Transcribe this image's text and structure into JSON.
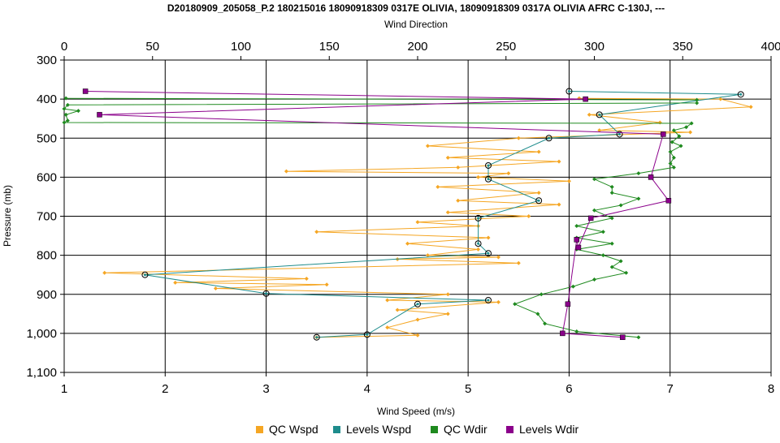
{
  "chart_data": {
    "type": "line",
    "title": "D20180909_205058_P.2 180215016 18090918309 0317E OLIVIA, 18090918309 0317A OLIVIA AFRC C-130J, ---",
    "xlabel": "Wind Speed (m/s)",
    "x2label": "Wind Direction",
    "ylabel": "Pressure (mb)",
    "xlim": [
      1,
      8
    ],
    "x2lim": [
      0,
      400
    ],
    "ylim": [
      300,
      1100
    ],
    "y_inverted": true,
    "grid": true,
    "legend_position": "bottom",
    "x_ticks": [
      "1",
      "2",
      "3",
      "4",
      "5",
      "6",
      "7",
      "8"
    ],
    "x2_ticks": [
      "0",
      "50",
      "100",
      "150",
      "200",
      "250",
      "300",
      "350",
      "400"
    ],
    "y_ticks": [
      "300",
      "400",
      "500",
      "600",
      "700",
      "800",
      "900",
      "1,000",
      "1,100"
    ],
    "series": [
      {
        "name": "QC Wspd",
        "axis": "bottom",
        "color": "#f5a623",
        "marker": "diamond",
        "points": [
          [
            6.1,
            398
          ],
          [
            7.5,
            400
          ],
          [
            7.8,
            420
          ],
          [
            6.2,
            440
          ],
          [
            6.9,
            460
          ],
          [
            6.3,
            480
          ],
          [
            7.2,
            485
          ],
          [
            5.5,
            500
          ],
          [
            4.6,
            520
          ],
          [
            5.7,
            535
          ],
          [
            4.8,
            550
          ],
          [
            5.9,
            560
          ],
          [
            4.9,
            575
          ],
          [
            3.2,
            585
          ],
          [
            5.4,
            590
          ],
          [
            5.1,
            600
          ],
          [
            6.0,
            610
          ],
          [
            4.7,
            625
          ],
          [
            5.7,
            640
          ],
          [
            4.9,
            660
          ],
          [
            5.9,
            670
          ],
          [
            4.8,
            690
          ],
          [
            5.6,
            700
          ],
          [
            4.5,
            715
          ],
          [
            5.1,
            725
          ],
          [
            3.5,
            740
          ],
          [
            5.2,
            755
          ],
          [
            4.4,
            770
          ],
          [
            5.1,
            785
          ],
          [
            4.6,
            800
          ],
          [
            5.3,
            805
          ],
          [
            4.3,
            810
          ],
          [
            5.5,
            820
          ],
          [
            1.4,
            845
          ],
          [
            3.4,
            860
          ],
          [
            2.1,
            870
          ],
          [
            3.6,
            875
          ],
          [
            2.5,
            885
          ],
          [
            4.8,
            900
          ],
          [
            4.2,
            915
          ],
          [
            5.3,
            920
          ],
          [
            4.3,
            940
          ],
          [
            4.8,
            950
          ],
          [
            4.5,
            965
          ],
          [
            4.2,
            985
          ],
          [
            4.5,
            1005
          ],
          [
            3.5,
            1010
          ]
        ]
      },
      {
        "name": "Levels Wspd",
        "axis": "bottom",
        "color": "#1e8c8c",
        "marker": "circle",
        "points": [
          [
            6.0,
            380
          ],
          [
            7.7,
            388
          ],
          [
            6.3,
            440
          ],
          [
            6.5,
            490
          ],
          [
            5.8,
            500
          ],
          [
            5.2,
            570
          ],
          [
            5.2,
            605
          ],
          [
            5.7,
            660
          ],
          [
            5.1,
            705
          ],
          [
            5.1,
            770
          ],
          [
            5.2,
            795
          ],
          [
            1.8,
            850
          ],
          [
            3.0,
            898
          ],
          [
            5.2,
            915
          ],
          [
            4.5,
            925
          ],
          [
            4.0,
            1003
          ],
          [
            3.5,
            1010
          ]
        ]
      },
      {
        "name": "QC Wdir",
        "axis": "top",
        "color": "#1f8a1f",
        "marker": "diamond",
        "points": [
          [
            1,
            398
          ],
          [
            358,
            402
          ],
          [
            358,
            410
          ],
          [
            2,
            415
          ],
          [
            0,
            425
          ],
          [
            8,
            430
          ],
          [
            1,
            440
          ],
          [
            2,
            455
          ],
          [
            0,
            460
          ],
          [
            355,
            462
          ],
          [
            352,
            472
          ],
          [
            345,
            480
          ],
          [
            348,
            495
          ],
          [
            344,
            510
          ],
          [
            349,
            520
          ],
          [
            343,
            535
          ],
          [
            345,
            550
          ],
          [
            343,
            565
          ],
          [
            345,
            575
          ],
          [
            325,
            590
          ],
          [
            300,
            605
          ],
          [
            310,
            625
          ],
          [
            310,
            640
          ],
          [
            325,
            655
          ],
          [
            315,
            672
          ],
          [
            300,
            685
          ],
          [
            310,
            705
          ],
          [
            290,
            725
          ],
          [
            305,
            740
          ],
          [
            290,
            755
          ],
          [
            310,
            770
          ],
          [
            290,
            785
          ],
          [
            305,
            800
          ],
          [
            315,
            815
          ],
          [
            310,
            830
          ],
          [
            318,
            845
          ],
          [
            300,
            862
          ],
          [
            288,
            880
          ],
          [
            270,
            900
          ],
          [
            255,
            925
          ],
          [
            268,
            950
          ],
          [
            272,
            975
          ],
          [
            290,
            995
          ],
          [
            325,
            1010
          ]
        ]
      },
      {
        "name": "Levels Wdir",
        "axis": "top",
        "color": "#8b008b",
        "marker": "square",
        "points": [
          [
            12,
            380
          ],
          [
            295,
            400
          ],
          [
            20,
            440
          ],
          [
            339,
            490
          ],
          [
            332,
            600
          ],
          [
            342,
            660
          ],
          [
            298,
            705
          ],
          [
            291,
            780
          ],
          [
            290,
            760
          ],
          [
            285,
            925
          ],
          [
            282,
            1000
          ],
          [
            316,
            1010
          ]
        ]
      }
    ]
  },
  "legend": {
    "items": [
      {
        "label": "QC Wspd",
        "color": "#f5a623"
      },
      {
        "label": "Levels Wspd",
        "color": "#1e8c8c"
      },
      {
        "label": "QC Wdir",
        "color": "#1f8a1f"
      },
      {
        "label": "Levels Wdir",
        "color": "#8b008b"
      }
    ]
  }
}
